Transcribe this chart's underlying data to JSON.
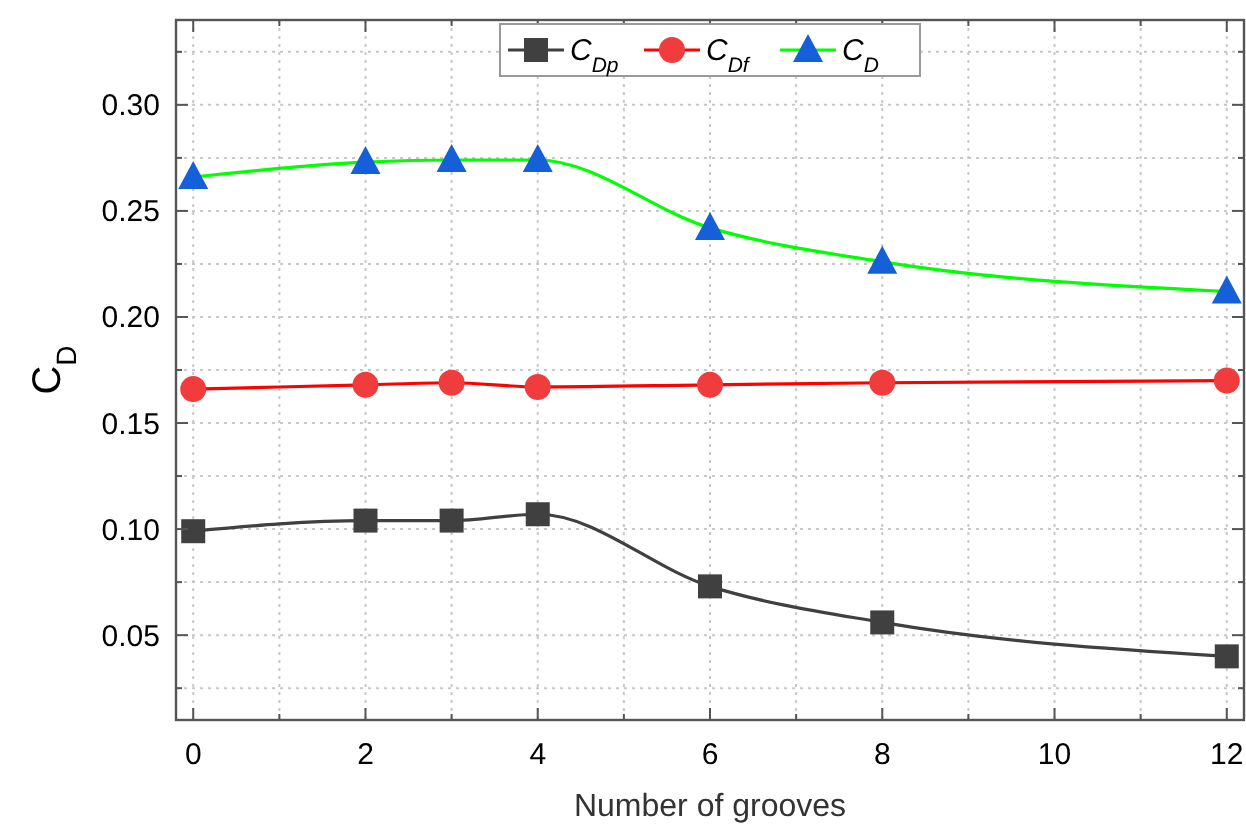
{
  "chart_data": {
    "type": "line",
    "xlabel": "Number of grooves",
    "ylabel": "C$_{D}$",
    "x": [
      0,
      2,
      3,
      4,
      6,
      8,
      12
    ],
    "series": [
      {
        "name": "C$_{Dp}$",
        "color": "#404040",
        "marker": "square",
        "values": [
          0.099,
          0.104,
          0.104,
          0.107,
          0.073,
          0.056,
          0.04
        ]
      },
      {
        "name": "C$_{Df}$",
        "color": "#ff0000",
        "marker": "circle",
        "values": [
          0.166,
          0.168,
          0.169,
          0.167,
          0.168,
          0.169,
          0.17
        ]
      },
      {
        "name": "C$_{D}$",
        "color": "#00ff00",
        "marker": "triangle",
        "values": [
          0.266,
          0.273,
          0.274,
          0.274,
          0.242,
          0.226,
          0.212
        ]
      }
    ],
    "xlim": [
      -0.2,
      12.2
    ],
    "xticks": [
      0,
      {
        "value": 1,
        "label": null
      },
      2,
      {
        "value": 3,
        "label": null
      },
      4,
      {
        "value": 5,
        "label": null
      },
      6,
      {
        "value": 7,
        "label": null
      },
      8,
      {
        "value": 9,
        "label": null
      },
      10,
      {
        "value": 11,
        "label": null
      },
      12
    ],
    "ylim": [
      0.01,
      0.34
    ],
    "yticks": [
      {
        "value": 0.025,
        "label": null
      },
      {
        "value": 0.05,
        "label": "0.05"
      },
      {
        "value": 0.075,
        "label": null
      },
      {
        "value": 0.1,
        "label": "0.10"
      },
      {
        "value": 0.125,
        "label": null
      },
      {
        "value": 0.15,
        "label": "0.15"
      },
      {
        "value": 0.175,
        "label": null
      },
      {
        "value": 0.2,
        "label": "0.20"
      },
      {
        "value": 0.225,
        "label": null
      },
      {
        "value": 0.25,
        "label": "0.25"
      },
      {
        "value": 0.275,
        "label": null
      },
      {
        "value": 0.3,
        "label": "0.30"
      },
      {
        "value": 0.325,
        "label": null
      }
    ],
    "grid": true,
    "legend": "top",
    "line_style": "solid"
  }
}
